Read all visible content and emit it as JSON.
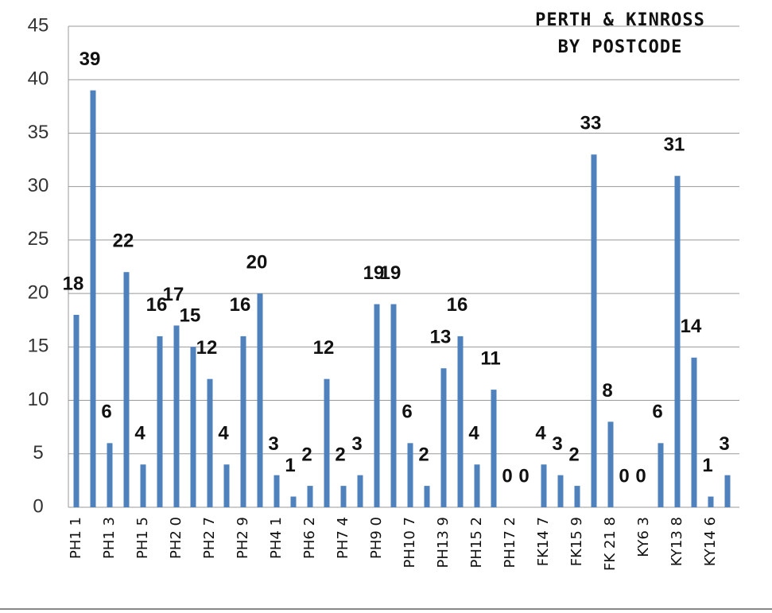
{
  "chart_data": {
    "type": "bar",
    "title": [
      "PERTH & KINROSS",
      "BY POSTCODE"
    ],
    "categories": [
      "PH1 1",
      null,
      "PH1 3",
      null,
      "PH1 5",
      null,
      "PH2 0",
      null,
      "PH2 7",
      null,
      "PH2 9",
      null,
      "PH4 1",
      null,
      "PH6 2",
      null,
      "PH7 4",
      null,
      "PH9 0",
      null,
      "PH10 7",
      null,
      "PH13 9",
      null,
      "PH15 2",
      null,
      "PH17 2",
      null,
      "FK14 7",
      null,
      "FK15 9",
      null,
      "FK 21 8",
      null,
      "KY6 3",
      null,
      "KY13 8",
      null,
      "KY14 6",
      null
    ],
    "values": [
      18,
      39,
      6,
      22,
      4,
      16,
      17,
      15,
      12,
      4,
      16,
      20,
      3,
      1,
      2,
      12,
      2,
      3,
      19,
      19,
      6,
      2,
      13,
      16,
      4,
      11,
      0,
      0,
      4,
      3,
      2,
      33,
      8,
      0,
      0,
      6,
      31,
      14,
      1,
      3
    ],
    "color": "#4f81bd",
    "ylim": [
      0,
      45
    ],
    "yticks": [
      0,
      5,
      10,
      15,
      20,
      25,
      30,
      35,
      40,
      45
    ],
    "grid": true
  }
}
